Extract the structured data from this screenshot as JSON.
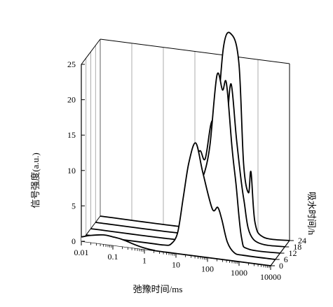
{
  "chart_data": {
    "type": "line",
    "subtype": "3d-waterfall",
    "title": "",
    "xlabel": "弛豫时间/ms",
    "ylabel": "信号强度(a.u.)",
    "zlabel": "吸水时间/h",
    "x_scale": "log",
    "xlim": [
      0.01,
      10000
    ],
    "ylim": [
      0,
      25
    ],
    "x_ticks": [
      "0.01",
      "0.1",
      "1",
      "10",
      "100",
      "1000",
      "10000"
    ],
    "x_tick_values": [
      0.01,
      0.1,
      1,
      10,
      100,
      1000,
      10000
    ],
    "y_ticks": [
      "0",
      "5",
      "10",
      "15",
      "20",
      "25"
    ],
    "y_tick_values": [
      0,
      5,
      10,
      15,
      20,
      25
    ],
    "z_ticks": [
      "0",
      "6",
      "12",
      "18",
      "24"
    ],
    "z_values": [
      0,
      6,
      12,
      18,
      24
    ],
    "grid": true,
    "series": [
      {
        "z": 0,
        "x": [
          0.01,
          0.02,
          0.05,
          0.1,
          0.2,
          0.5,
          1,
          2,
          5,
          10000
        ],
        "values": [
          0.6,
          1.0,
          1.3,
          1.2,
          1.0,
          0.5,
          0.2,
          0.05,
          0,
          0
        ]
      },
      {
        "z": 6,
        "x": [
          0.01,
          1,
          3,
          5,
          8,
          12,
          18,
          30,
          50,
          100,
          150,
          200,
          300,
          500,
          1000,
          10000
        ],
        "values": [
          0,
          0,
          0,
          0.3,
          2,
          7,
          12,
          15,
          11,
          6,
          6.3,
          4.7,
          1.6,
          0.2,
          0,
          0
        ]
      },
      {
        "z": 12,
        "x": [
          0.01,
          3,
          5,
          8,
          12,
          20,
          30,
          40,
          60,
          100,
          150,
          200,
          300,
          400,
          600,
          1000,
          10000
        ],
        "values": [
          0,
          0,
          0.3,
          3,
          9,
          11,
          9.5,
          10,
          14,
          24,
          22,
          23,
          14,
          9,
          1.5,
          0,
          0
        ]
      },
      {
        "z": 18,
        "x": [
          0.01,
          3,
          5,
          8,
          12,
          20,
          30,
          50,
          80,
          120,
          150,
          200,
          300,
          500,
          1000,
          10000
        ],
        "values": [
          0,
          0,
          0.3,
          2,
          9,
          12,
          11,
          16.5,
          12,
          18,
          17.5,
          22,
          14,
          6,
          0.5,
          0
        ]
      },
      {
        "z": 24,
        "x": [
          0.01,
          5,
          10,
          15,
          20,
          40,
          80,
          150,
          250,
          350,
          500,
          600,
          800,
          1500,
          10000
        ],
        "values": [
          0,
          0,
          0.5,
          3,
          7,
          10,
          26,
          28,
          24,
          10,
          6,
          9,
          2,
          0,
          0
        ]
      }
    ]
  }
}
